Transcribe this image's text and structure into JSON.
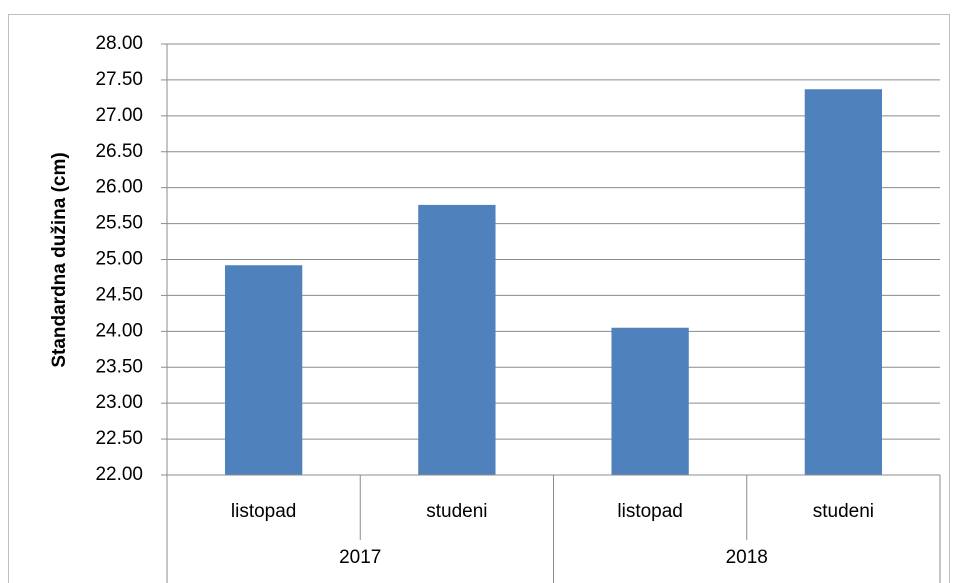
{
  "chart_data": {
    "type": "bar",
    "y_label": "Standardna dužina (cm)",
    "categories": [
      "listopad",
      "studeni",
      "listopad",
      "studeni"
    ],
    "groups": [
      "2017",
      "2018"
    ],
    "values": [
      24.92,
      25.76,
      24.05,
      27.37
    ],
    "color": "#4f81bd",
    "ylim": [
      22,
      28
    ],
    "yticks": [
      {
        "value": 22,
        "label": "22.00"
      },
      {
        "value": 22.5,
        "label": "22.50"
      },
      {
        "value": 23,
        "label": "23.00"
      },
      {
        "value": 23.5,
        "label": "23.50"
      },
      {
        "value": 24,
        "label": "24.00"
      },
      {
        "value": 24.5,
        "label": "24.50"
      },
      {
        "value": 25,
        "label": "25.00"
      },
      {
        "value": 25.5,
        "label": "25.50"
      },
      {
        "value": 26,
        "label": "26.00"
      },
      {
        "value": 26.5,
        "label": "26.50"
      },
      {
        "value": 27,
        "label": "27.00"
      },
      {
        "value": 27.5,
        "label": "27.50"
      },
      {
        "value": 28,
        "label": "28.00"
      }
    ],
    "grid": true
  }
}
